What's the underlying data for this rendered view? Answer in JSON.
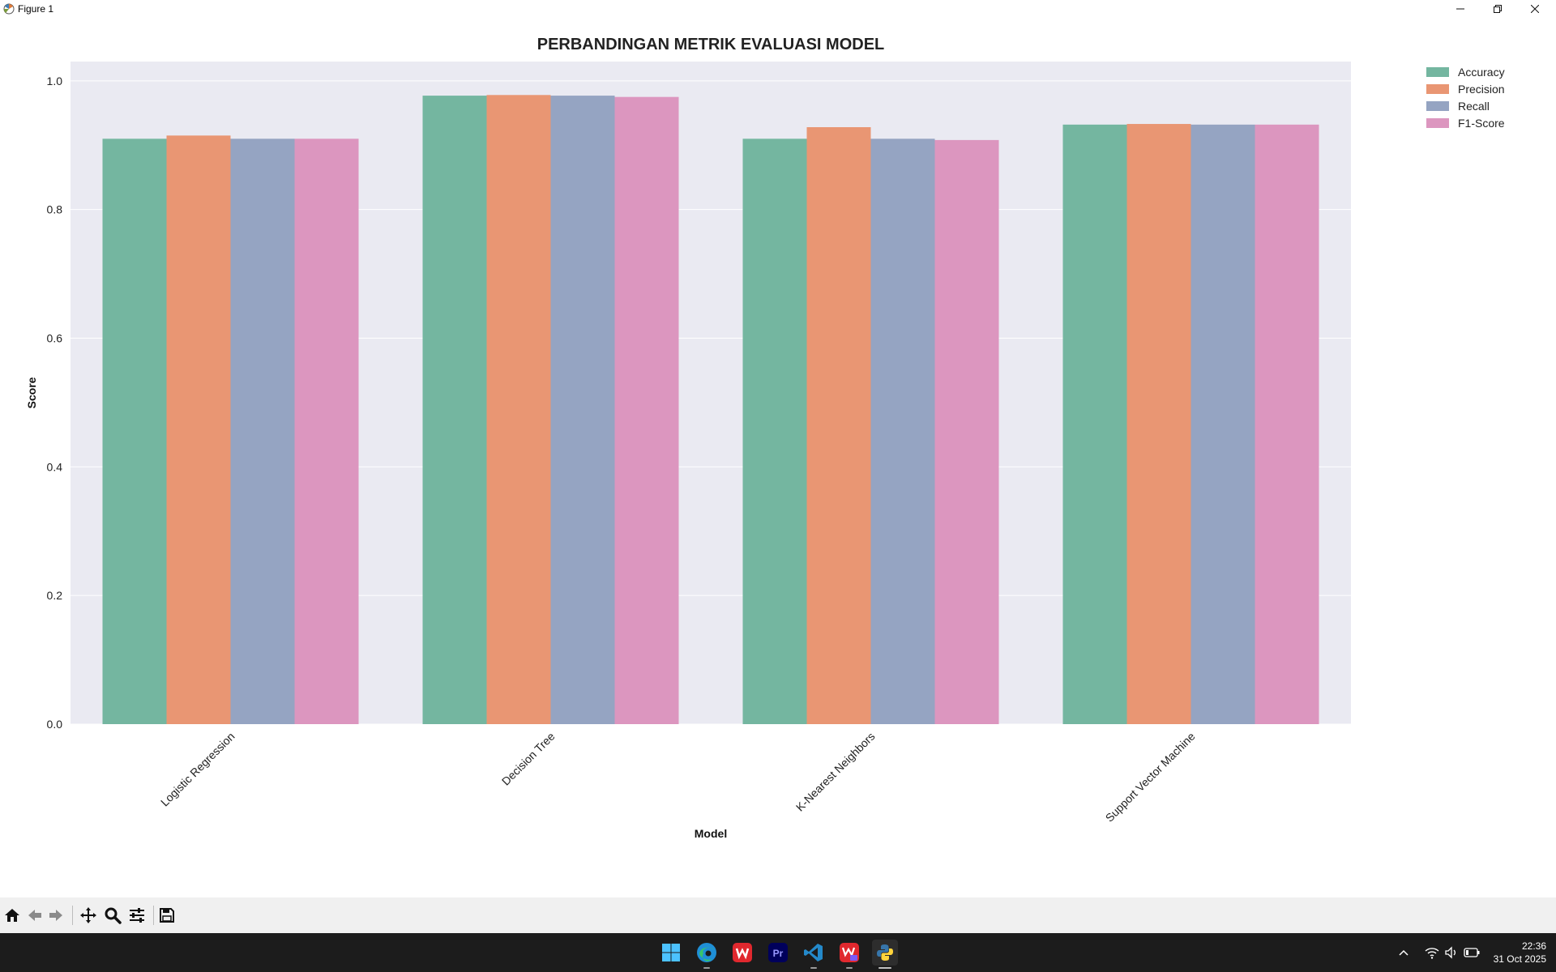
{
  "window": {
    "title": "Figure 1"
  },
  "chart_data": {
    "type": "bar",
    "title": "PERBANDINGAN METRIK EVALUASI MODEL",
    "xlabel": "Model",
    "ylabel": "Score",
    "ylim": [
      0,
      1.03
    ],
    "yticks": [
      "0.0",
      "0.2",
      "0.4",
      "0.6",
      "0.8",
      "1.0"
    ],
    "categories": [
      "Logistic Regression",
      "Decision Tree",
      "K-Nearest Neighbors",
      "Support Vector Machine"
    ],
    "series": [
      {
        "name": "Accuracy",
        "color": "#74b6a0",
        "values": [
          0.91,
          0.977,
          0.91,
          0.932
        ]
      },
      {
        "name": "Precision",
        "color": "#e99673",
        "values": [
          0.915,
          0.978,
          0.928,
          0.933
        ]
      },
      {
        "name": "Recall",
        "color": "#95a4c2",
        "values": [
          0.91,
          0.977,
          0.91,
          0.932
        ]
      },
      {
        "name": "F1-Score",
        "color": "#dc96bf",
        "values": [
          0.91,
          0.975,
          0.908,
          0.932
        ]
      }
    ],
    "grid": true,
    "legend": "top-right outside",
    "plot_background": "#eaeaf2"
  },
  "toolbar": {
    "icons": [
      "home-icon",
      "back-arrow-icon",
      "forward-arrow-icon",
      "pan-icon",
      "zoom-icon",
      "configure-subplots-icon",
      "save-icon"
    ]
  },
  "taskbar": {
    "apps": [
      "windows-start-icon",
      "edge-icon",
      "wps-office-icon",
      "premiere-pro-icon",
      "vscode-icon",
      "wps-pdf-icon",
      "python-icon"
    ],
    "time": "22:36",
    "date": "31 Oct 2025"
  }
}
